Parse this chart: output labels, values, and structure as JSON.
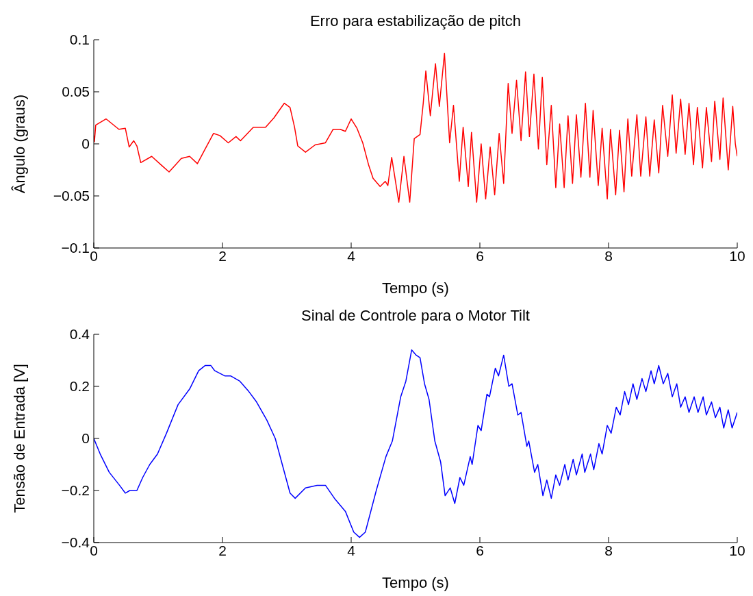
{
  "chart_data": [
    {
      "type": "line",
      "title": "Erro para estabilização de pitch",
      "xlabel": "Tempo (s)",
      "ylabel": "Ângulo (graus)",
      "xlim": [
        0,
        10
      ],
      "xticks": [
        0,
        2,
        4,
        6,
        8,
        10
      ],
      "ylim": [
        -0.1,
        0.1
      ],
      "yticks": [
        -0.1,
        -0.05,
        0,
        0.05,
        0.1
      ],
      "x": [
        0,
        0.01,
        0.03,
        0.19,
        0.39,
        0.49,
        0.55,
        0.62,
        0.67,
        0.73,
        0.9,
        1.06,
        1.17,
        1.36,
        1.49,
        1.61,
        1.73,
        1.86,
        1.96,
        2.09,
        2.21,
        2.28,
        2.48,
        2.67,
        2.8,
        2.96,
        3.05,
        3.12,
        3.17,
        3.29,
        3.44,
        3.6,
        3.72,
        3.83,
        3.91,
        4,
        4.09,
        4.18,
        4.27,
        4.34,
        4.45,
        4.53,
        4.57,
        4.63,
        4.74,
        4.82,
        4.91,
        4.98,
        5.07,
        5.12,
        5.16,
        5.23,
        5.31,
        5.37,
        5.45,
        5.53,
        5.59,
        5.68,
        5.74,
        5.82,
        5.87,
        5.95,
        6.02,
        6.09,
        6.16,
        6.23,
        6.3,
        6.37,
        6.44,
        6.5,
        6.57,
        6.64,
        6.71,
        6.77,
        6.84,
        6.91,
        6.97,
        7.04,
        7.11,
        7.18,
        7.24,
        7.31,
        7.37,
        7.44,
        7.5,
        7.57,
        7.64,
        7.71,
        7.76,
        7.84,
        7.9,
        7.98,
        8.03,
        8.11,
        8.17,
        8.24,
        8.3,
        8.36,
        8.44,
        8.5,
        8.58,
        8.64,
        8.71,
        8.78,
        8.84,
        8.92,
        8.99,
        9.05,
        9.12,
        9.19,
        9.25,
        9.32,
        9.38,
        9.46,
        9.52,
        9.6,
        9.65,
        9.73,
        9.78,
        9.86,
        9.93,
        9.97,
        10
      ],
      "series": [
        {
          "color": "#ff0000",
          "values": [
            0.008,
            0.002,
            0.018,
            0.024,
            0.014,
            0.015,
            -0.003,
            0.003,
            -0.002,
            -0.018,
            -0.012,
            -0.021,
            -0.027,
            -0.014,
            -0.012,
            -0.019,
            -0.005,
            0.01,
            0.008,
            0.001,
            0.007,
            0.003,
            0.016,
            0.016,
            0.025,
            0.039,
            0.035,
            0.016,
            -0.002,
            -0.008,
            -0.001,
            0.001,
            0.014,
            0.014,
            0.012,
            0.024,
            0.015,
            0.001,
            -0.02,
            -0.033,
            -0.041,
            -0.036,
            -0.04,
            -0.013,
            -0.056,
            -0.012,
            -0.056,
            0.005,
            0.009,
            0.039,
            0.07,
            0.027,
            0.077,
            0.036,
            0.087,
            0.001,
            0.037,
            -0.036,
            0.016,
            -0.041,
            0.011,
            -0.056,
            0,
            -0.053,
            -0.003,
            -0.049,
            0.01,
            -0.038,
            0.058,
            0.01,
            0.061,
            0.003,
            0.069,
            0.007,
            0.067,
            -0.005,
            0.064,
            -0.02,
            0.037,
            -0.042,
            0.019,
            -0.042,
            0.027,
            -0.038,
            0.028,
            -0.032,
            0.039,
            -0.032,
            0.032,
            -0.04,
            0.015,
            -0.053,
            0.014,
            -0.049,
            0.013,
            -0.046,
            0.024,
            -0.031,
            0.028,
            -0.031,
            0.026,
            -0.031,
            0.023,
            -0.028,
            0.037,
            -0.012,
            0.047,
            -0.009,
            0.043,
            -0.01,
            0.039,
            -0.02,
            0.035,
            -0.023,
            0.035,
            -0.017,
            0.041,
            -0.015,
            0.044,
            -0.025,
            0.036,
            0,
            -0.012
          ]
        }
      ]
    },
    {
      "type": "line",
      "title": "Sinal de Controle para o Motor Tilt",
      "xlabel": "Tempo (s)",
      "ylabel": "Tensão de Entrada [V]",
      "xlim": [
        0,
        10
      ],
      "xticks": [
        0,
        2,
        4,
        6,
        8,
        10
      ],
      "ylim": [
        -0.4,
        0.4
      ],
      "yticks": [
        -0.4,
        -0.2,
        0,
        0.2,
        0.4
      ],
      "x": [
        0,
        0.1,
        0.24,
        0.4,
        0.49,
        0.56,
        0.67,
        0.76,
        0.87,
        0.99,
        1.13,
        1.31,
        1.49,
        1.63,
        1.73,
        1.82,
        1.88,
        2.04,
        2.13,
        2.27,
        2.41,
        2.53,
        2.69,
        2.82,
        2.94,
        3.05,
        3.13,
        3.29,
        3.47,
        3.6,
        3.74,
        3.91,
        4.04,
        4.13,
        4.22,
        4.39,
        4.54,
        4.64,
        4.77,
        4.85,
        4.94,
        5.01,
        5.07,
        5.14,
        5.21,
        5.3,
        5.39,
        5.46,
        5.54,
        5.61,
        5.69,
        5.75,
        5.85,
        5.88,
        5.97,
        6.02,
        6.11,
        6.15,
        6.24,
        6.29,
        6.37,
        6.45,
        6.5,
        6.59,
        6.64,
        6.73,
        6.76,
        6.85,
        6.9,
        6.98,
        7.04,
        7.11,
        7.18,
        7.24,
        7.32,
        7.37,
        7.45,
        7.5,
        7.59,
        7.63,
        7.72,
        7.77,
        7.85,
        7.9,
        7.98,
        8.04,
        8.12,
        8.18,
        8.25,
        8.31,
        8.38,
        8.44,
        8.52,
        8.58,
        8.66,
        8.71,
        8.78,
        8.85,
        8.92,
        8.99,
        9.06,
        9.12,
        9.19,
        9.25,
        9.33,
        9.39,
        9.47,
        9.52,
        9.6,
        9.66,
        9.73,
        9.79,
        9.86,
        9.92,
        10
      ],
      "series": [
        {
          "color": "#0000ff",
          "values": [
            0,
            -0.06,
            -0.13,
            -0.18,
            -0.21,
            -0.2,
            -0.2,
            -0.15,
            -0.1,
            -0.06,
            0.02,
            0.13,
            0.19,
            0.26,
            0.28,
            0.28,
            0.26,
            0.24,
            0.24,
            0.22,
            0.18,
            0.14,
            0.07,
            0,
            -0.11,
            -0.21,
            -0.23,
            -0.19,
            -0.18,
            -0.18,
            -0.23,
            -0.28,
            -0.36,
            -0.38,
            -0.36,
            -0.2,
            -0.07,
            -0.01,
            0.16,
            0.22,
            0.34,
            0.32,
            0.31,
            0.21,
            0.15,
            -0.01,
            -0.09,
            -0.22,
            -0.19,
            -0.25,
            -0.15,
            -0.18,
            -0.07,
            -0.1,
            0.05,
            0.03,
            0.17,
            0.16,
            0.27,
            0.24,
            0.32,
            0.2,
            0.21,
            0.09,
            0.1,
            -0.03,
            -0.01,
            -0.13,
            -0.1,
            -0.22,
            -0.16,
            -0.23,
            -0.14,
            -0.18,
            -0.1,
            -0.16,
            -0.08,
            -0.14,
            -0.06,
            -0.13,
            -0.06,
            -0.12,
            -0.02,
            -0.06,
            0.05,
            0.02,
            0.12,
            0.09,
            0.18,
            0.13,
            0.21,
            0.15,
            0.23,
            0.18,
            0.26,
            0.21,
            0.28,
            0.21,
            0.25,
            0.16,
            0.21,
            0.12,
            0.16,
            0.1,
            0.16,
            0.1,
            0.16,
            0.09,
            0.14,
            0.08,
            0.12,
            0.04,
            0.11,
            0.04,
            0.1
          ]
        }
      ]
    }
  ]
}
